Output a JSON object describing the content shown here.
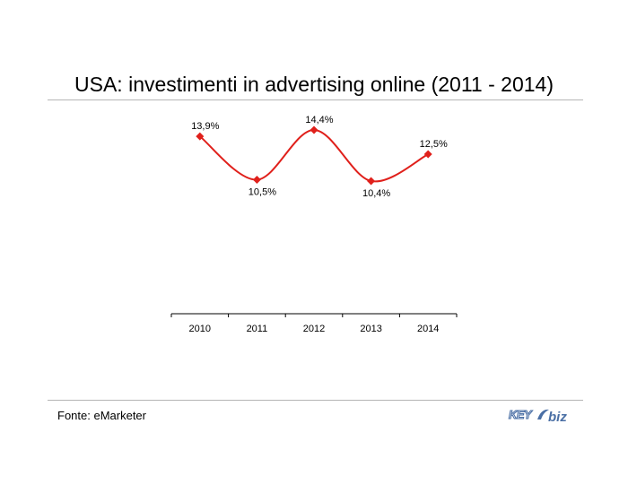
{
  "title": "USA: investimenti in advertising online (2011 - 2014)",
  "source": "Fonte: eMarketer",
  "logo": {
    "text_key": "KEY",
    "text_biz": "biz",
    "color": "#4a6fa5"
  },
  "chart_data": {
    "type": "line",
    "title": "USA: investimenti in advertising online (2011 - 2014)",
    "x": [
      "2010",
      "2011",
      "2012",
      "2013",
      "2014"
    ],
    "series": [
      {
        "values": [
          13.9,
          10.5,
          14.4,
          10.4,
          12.5
        ],
        "labels": [
          "13,9%",
          "10,5%",
          "14,4%",
          "10,4%",
          "12,5%"
        ],
        "color": "#e0201b"
      }
    ],
    "xlabel": "",
    "ylabel": "",
    "ylim": [
      0,
      17
    ],
    "grid": false,
    "legend": "none",
    "smooth": true,
    "marker": "diamond"
  }
}
